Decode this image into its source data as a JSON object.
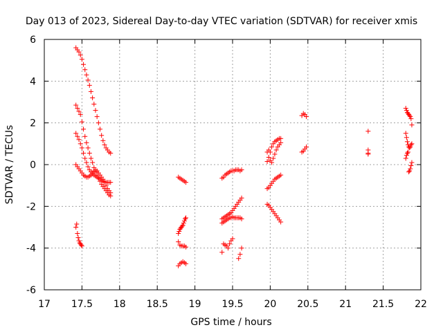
{
  "chart_data": {
    "type": "scatter",
    "title": "Day 013 of 2023, Sidereal Day-to-day VTEC variation (SDTVAR) for receiver xmis",
    "xlabel": "GPS time / hours",
    "ylabel": "SDTVAR / TECUs",
    "xlim": [
      17,
      22
    ],
    "ylim": [
      -6,
      6
    ],
    "x_ticks": [
      17,
      17.5,
      18,
      18.5,
      19,
      19.5,
      20,
      20.5,
      21,
      21.5,
      22
    ],
    "x_tick_labels": [
      "17",
      "17.5",
      "18",
      "18.5",
      "19",
      "19.5",
      "20",
      "20.5",
      "21",
      "21.5",
      "22"
    ],
    "y_ticks": [
      -6,
      -4,
      -2,
      0,
      2,
      4,
      6
    ],
    "y_tick_labels": [
      "-6",
      "-4",
      "-2",
      "0",
      "2",
      "4",
      "6"
    ],
    "grid": true,
    "marker": "+",
    "color": "#ff0000",
    "series": [
      {
        "name": "SDTVAR",
        "x": [
          17.42,
          17.44,
          17.46,
          17.48,
          17.5,
          17.52,
          17.54,
          17.56,
          17.58,
          17.6,
          17.62,
          17.64,
          17.66,
          17.68,
          17.7,
          17.72,
          17.74,
          17.76,
          17.78,
          17.8,
          17.82,
          17.84,
          17.86,
          17.88,
          17.42,
          17.44,
          17.46,
          17.48,
          17.5,
          17.52,
          17.54,
          17.56,
          17.58,
          17.6,
          17.62,
          17.64,
          17.66,
          17.68,
          17.7,
          17.72,
          17.74,
          17.76,
          17.78,
          17.8,
          17.82,
          17.84,
          17.86,
          17.88,
          17.42,
          17.44,
          17.46,
          17.48,
          17.5,
          17.52,
          17.54,
          17.56,
          17.58,
          17.6,
          17.62,
          17.64,
          17.66,
          17.68,
          17.7,
          17.72,
          17.74,
          17.76,
          17.78,
          17.8,
          17.82,
          17.84,
          17.86,
          17.88,
          17.42,
          17.44,
          17.46,
          17.48,
          17.5,
          17.52,
          17.54,
          17.56,
          17.58,
          17.6,
          17.62,
          17.64,
          17.66,
          17.68,
          17.7,
          17.72,
          17.74,
          17.76,
          17.78,
          17.8,
          17.82,
          17.84,
          17.86,
          17.88,
          17.42,
          17.43,
          17.44,
          17.45,
          17.46,
          17.47,
          17.48,
          17.49,
          17.5,
          18.78,
          18.8,
          18.82,
          18.84,
          18.86,
          18.88,
          18.78,
          18.79,
          18.8,
          18.81,
          18.82,
          18.83,
          18.84,
          18.85,
          18.86,
          18.87,
          18.88,
          18.78,
          18.8,
          18.82,
          18.84,
          18.86,
          18.88,
          18.78,
          18.8,
          18.82,
          18.84,
          18.86,
          18.88,
          19.36,
          19.38,
          19.4,
          19.42,
          19.44,
          19.46,
          19.48,
          19.5,
          19.52,
          19.54,
          19.56,
          19.58,
          19.6,
          19.62,
          19.36,
          19.38,
          19.4,
          19.42,
          19.44,
          19.46,
          19.48,
          19.5,
          19.52,
          19.54,
          19.56,
          19.58,
          19.6,
          19.62,
          19.36,
          19.38,
          19.4,
          19.42,
          19.44,
          19.46,
          19.48,
          19.5,
          19.52,
          19.54,
          19.56,
          19.58,
          19.6,
          19.62,
          19.36,
          19.38,
          19.4,
          19.42,
          19.44,
          19.46,
          19.48,
          19.5,
          19.58,
          19.6,
          19.62,
          19.96,
          19.98,
          20.0,
          20.02,
          20.04,
          20.06,
          20.08,
          20.1,
          20.12,
          20.14,
          19.96,
          19.98,
          20.0,
          20.02,
          20.04,
          20.06,
          20.08,
          20.1,
          20.12,
          20.14,
          19.96,
          19.98,
          20.0,
          20.02,
          20.04,
          20.06,
          20.08,
          20.1,
          20.12,
          20.14,
          19.96,
          19.98,
          20.0,
          20.02,
          20.04,
          20.06,
          20.08,
          20.1,
          20.12,
          20.14,
          20.42,
          20.44,
          20.46,
          20.48,
          20.42,
          20.44,
          20.46,
          20.48,
          21.3,
          21.3,
          21.3,
          21.3,
          21.8,
          21.81,
          21.82,
          21.83,
          21.84,
          21.85,
          21.86,
          21.87,
          21.88,
          21.8,
          21.81,
          21.82,
          21.83,
          21.84,
          21.85,
          21.86,
          21.87,
          21.88,
          21.8,
          21.81,
          21.82,
          21.83,
          21.84,
          21.85,
          21.86,
          21.87,
          21.88
        ],
        "y": [
          5.6,
          5.5,
          5.4,
          5.25,
          5.05,
          4.8,
          4.55,
          4.3,
          4.05,
          3.8,
          3.5,
          3.2,
          2.9,
          2.6,
          2.3,
          2.0,
          1.7,
          1.4,
          1.15,
          0.95,
          0.8,
          0.7,
          0.6,
          0.55,
          2.85,
          2.7,
          2.55,
          2.4,
          2.05,
          1.7,
          1.35,
          1.05,
          0.8,
          0.55,
          0.3,
          0.1,
          -0.15,
          -0.35,
          -0.5,
          -0.65,
          -0.8,
          -0.95,
          -1.05,
          -1.15,
          -1.25,
          -1.35,
          -1.45,
          -1.5,
          1.5,
          1.35,
          1.2,
          1.0,
          0.8,
          0.55,
          0.3,
          0.1,
          -0.1,
          -0.25,
          -0.35,
          -0.45,
          -0.5,
          -0.55,
          -0.6,
          -0.65,
          -0.7,
          -0.75,
          -0.8,
          -0.82,
          -0.85,
          -0.85,
          -0.85,
          -0.85,
          0.0,
          -0.1,
          -0.2,
          -0.3,
          -0.4,
          -0.5,
          -0.55,
          -0.6,
          -0.6,
          -0.55,
          -0.5,
          -0.4,
          -0.3,
          -0.25,
          -0.3,
          -0.4,
          -0.5,
          -0.6,
          -0.7,
          -0.85,
          -1.0,
          -1.15,
          -1.25,
          -1.35,
          -3.0,
          -2.85,
          -3.3,
          -3.5,
          -3.65,
          -3.75,
          -3.8,
          -3.85,
          -3.9,
          -0.6,
          -0.65,
          -0.7,
          -0.75,
          -0.8,
          -0.85,
          -3.3,
          -3.2,
          -3.1,
          -3.05,
          -3.0,
          -2.95,
          -2.9,
          -2.8,
          -2.7,
          -2.6,
          -2.55,
          -3.7,
          -3.85,
          -3.9,
          -3.9,
          -3.9,
          -3.95,
          -4.85,
          -4.75,
          -4.7,
          -4.65,
          -4.7,
          -4.75,
          -0.65,
          -0.6,
          -0.5,
          -0.45,
          -0.4,
          -0.35,
          -0.3,
          -0.3,
          -0.3,
          -0.25,
          -0.25,
          -0.25,
          -0.3,
          -0.25,
          -2.8,
          -2.75,
          -2.7,
          -2.65,
          -2.6,
          -2.55,
          -2.55,
          -2.5,
          -2.55,
          -2.55,
          -2.55,
          -2.55,
          -2.55,
          -2.6,
          -2.6,
          -2.55,
          -2.5,
          -2.45,
          -2.4,
          -2.35,
          -2.3,
          -2.2,
          -2.1,
          -2.0,
          -1.9,
          -1.8,
          -1.7,
          -1.6,
          -4.2,
          -3.8,
          -3.85,
          -3.9,
          -4.0,
          -3.8,
          -3.65,
          -3.55,
          -4.5,
          -4.3,
          -4.0,
          0.15,
          0.35,
          0.6,
          0.85,
          1.0,
          1.1,
          1.15,
          1.2,
          1.25,
          1.25,
          -1.15,
          -1.1,
          -1.0,
          -0.9,
          -0.8,
          -0.7,
          -0.65,
          -0.6,
          -0.55,
          -0.5,
          -1.9,
          -1.95,
          -2.05,
          -2.15,
          -2.25,
          -2.35,
          -2.45,
          -2.55,
          -2.65,
          -2.75,
          0.6,
          0.7,
          0.2,
          0.1,
          0.3,
          0.5,
          0.7,
          0.85,
          0.95,
          1.05,
          2.35,
          2.45,
          2.4,
          2.3,
          0.6,
          0.65,
          0.75,
          0.85,
          1.6,
          0.7,
          0.55,
          0.5,
          2.7,
          2.6,
          2.5,
          2.45,
          2.4,
          2.35,
          2.3,
          2.2,
          1.9,
          1.5,
          1.3,
          1.1,
          0.95,
          0.85,
          0.8,
          0.85,
          0.95,
          1.0,
          0.3,
          0.45,
          0.55,
          0.6,
          -0.35,
          -0.3,
          -0.2,
          -0.05,
          0.1
        ]
      }
    ]
  }
}
